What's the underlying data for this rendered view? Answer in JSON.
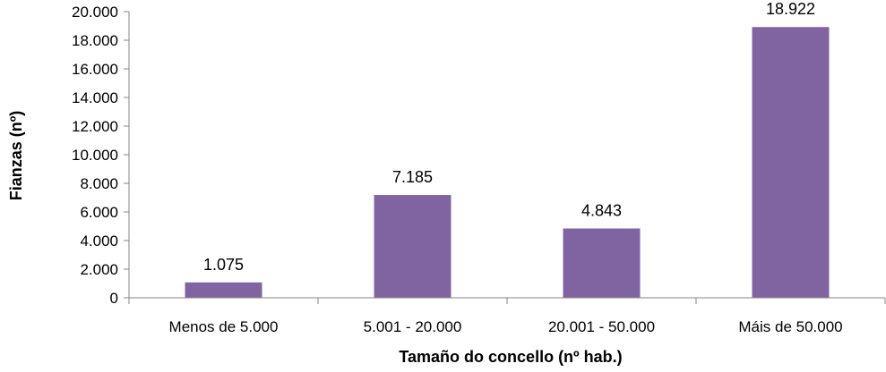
{
  "chart_data": {
    "type": "bar",
    "title": "",
    "xlabel": "Tamaño do concello (nº hab.)",
    "ylabel": "Fianzas (nº)",
    "categories": [
      "Menos de 5.000",
      "5.001 - 20.000",
      "20.001 - 50.000",
      "Máis de 50.000"
    ],
    "values": [
      1075,
      7185,
      4843,
      18922
    ],
    "value_labels": [
      "1.075",
      "7.185",
      "4.843",
      "18.922"
    ],
    "ylim": [
      0,
      20000
    ],
    "yticks": [
      0,
      2000,
      4000,
      6000,
      8000,
      10000,
      12000,
      14000,
      16000,
      18000,
      20000
    ],
    "ytick_labels": [
      "0",
      "2.000",
      "4.000",
      "6.000",
      "8.000",
      "10.000",
      "12.000",
      "14.000",
      "16.000",
      "18.000",
      "20.000"
    ],
    "grid": false,
    "legend": "none",
    "bar_color": "#8064A2",
    "axis_color": "#868686"
  }
}
